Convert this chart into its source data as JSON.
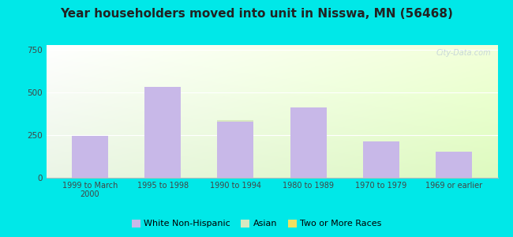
{
  "title": "Year householders moved into unit in Nisswa, MN (56468)",
  "categories": [
    "1999 to March\n2000",
    "1995 to 1998",
    "1990 to 1994",
    "1980 to 1989",
    "1970 to 1979",
    "1969 or earlier"
  ],
  "white_non_hispanic": [
    247,
    536,
    330,
    415,
    215,
    155
  ],
  "asian": [
    0,
    0,
    10,
    0,
    0,
    0
  ],
  "two_or_more": [
    0,
    0,
    0,
    0,
    0,
    0
  ],
  "bar_color_white": "#c8b8e8",
  "bar_color_asian": "#d8e8c0",
  "bar_color_two": "#f0e060",
  "background_outer": "#00e8e8",
  "title_fontsize": 11,
  "ylabel_ticks": [
    0,
    250,
    500,
    750
  ],
  "ylim": [
    0,
    780
  ],
  "legend_labels": [
    "White Non-Hispanic",
    "Asian",
    "Two or More Races"
  ],
  "watermark": "City-Data.com"
}
